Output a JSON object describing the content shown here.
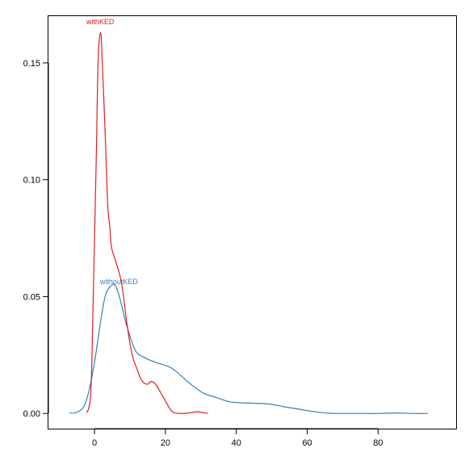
{
  "chart_data": {
    "type": "line",
    "title": "",
    "xlabel": "",
    "ylabel": "",
    "xlim": [
      -13,
      102
    ],
    "ylim": [
      -0.0065,
      0.17
    ],
    "x_ticks": [
      0,
      20,
      40,
      60,
      80
    ],
    "y_ticks": [
      0.0,
      0.05,
      0.1,
      0.15
    ],
    "x_tick_labels": [
      "0",
      "20",
      "40",
      "60",
      "80"
    ],
    "y_tick_labels": [
      "0.00",
      "0.05",
      "0.10",
      "0.15"
    ],
    "grid": false,
    "legend": "none",
    "series": [
      {
        "name": "withKED",
        "color": "#e41a1c",
        "label_at": [
          1.6,
          0.1665
        ],
        "points": [
          [
            -2.3,
            0.0004
          ],
          [
            -1.7,
            0.002
          ],
          [
            -1.0,
            0.01
          ],
          [
            -0.5,
            0.04
          ],
          [
            0.5,
            0.11
          ],
          [
            1.0,
            0.15
          ],
          [
            1.7,
            0.163
          ],
          [
            2.2,
            0.15
          ],
          [
            3.0,
            0.12
          ],
          [
            3.7,
            0.09
          ],
          [
            4.3,
            0.08
          ],
          [
            4.8,
            0.071
          ],
          [
            6.0,
            0.065
          ],
          [
            7.6,
            0.056
          ],
          [
            9.0,
            0.04
          ],
          [
            10.0,
            0.03
          ],
          [
            11.0,
            0.023
          ],
          [
            12.0,
            0.019
          ],
          [
            13.0,
            0.015
          ],
          [
            14.0,
            0.013
          ],
          [
            15.0,
            0.0125
          ],
          [
            15.7,
            0.0135
          ],
          [
            16.5,
            0.0135
          ],
          [
            17.5,
            0.012
          ],
          [
            19.0,
            0.008
          ],
          [
            20.5,
            0.004
          ],
          [
            21.5,
            0.0015
          ],
          [
            22.5,
            0.0003
          ],
          [
            25.0,
            0.0
          ],
          [
            27.0,
            0.0003
          ],
          [
            29.0,
            0.0007
          ],
          [
            30.5,
            0.0004
          ],
          [
            32.0,
            0.0
          ]
        ]
      },
      {
        "name": "withoutKED",
        "color": "#377eb8",
        "label_at": [
          6.9,
          0.0553
        ],
        "points": [
          [
            -7.0,
            0.0001
          ],
          [
            -5.0,
            0.0005
          ],
          [
            -3.0,
            0.003
          ],
          [
            -1.5,
            0.01
          ],
          [
            0.0,
            0.022
          ],
          [
            1.0,
            0.032
          ],
          [
            2.0,
            0.042
          ],
          [
            3.3,
            0.0515
          ],
          [
            5.5,
            0.0552
          ],
          [
            7.0,
            0.05
          ],
          [
            9.0,
            0.038
          ],
          [
            11.5,
            0.027
          ],
          [
            14.0,
            0.024
          ],
          [
            17.0,
            0.022
          ],
          [
            21.0,
            0.02
          ],
          [
            23.0,
            0.018
          ],
          [
            26.0,
            0.014
          ],
          [
            28.0,
            0.0115
          ],
          [
            31.0,
            0.0085
          ],
          [
            35.0,
            0.0065
          ],
          [
            38.0,
            0.005
          ],
          [
            42.0,
            0.0045
          ],
          [
            46.5,
            0.0043
          ],
          [
            49.5,
            0.004
          ],
          [
            53.0,
            0.003
          ],
          [
            57.0,
            0.002
          ],
          [
            61.0,
            0.001
          ],
          [
            66.0,
            0.0001
          ],
          [
            70.0,
            0.0
          ],
          [
            75.0,
            0.0
          ],
          [
            80.0,
            0.0
          ],
          [
            85.0,
            0.0002
          ],
          [
            90.0,
            0.0
          ],
          [
            94.0,
            0.0
          ]
        ]
      }
    ]
  }
}
